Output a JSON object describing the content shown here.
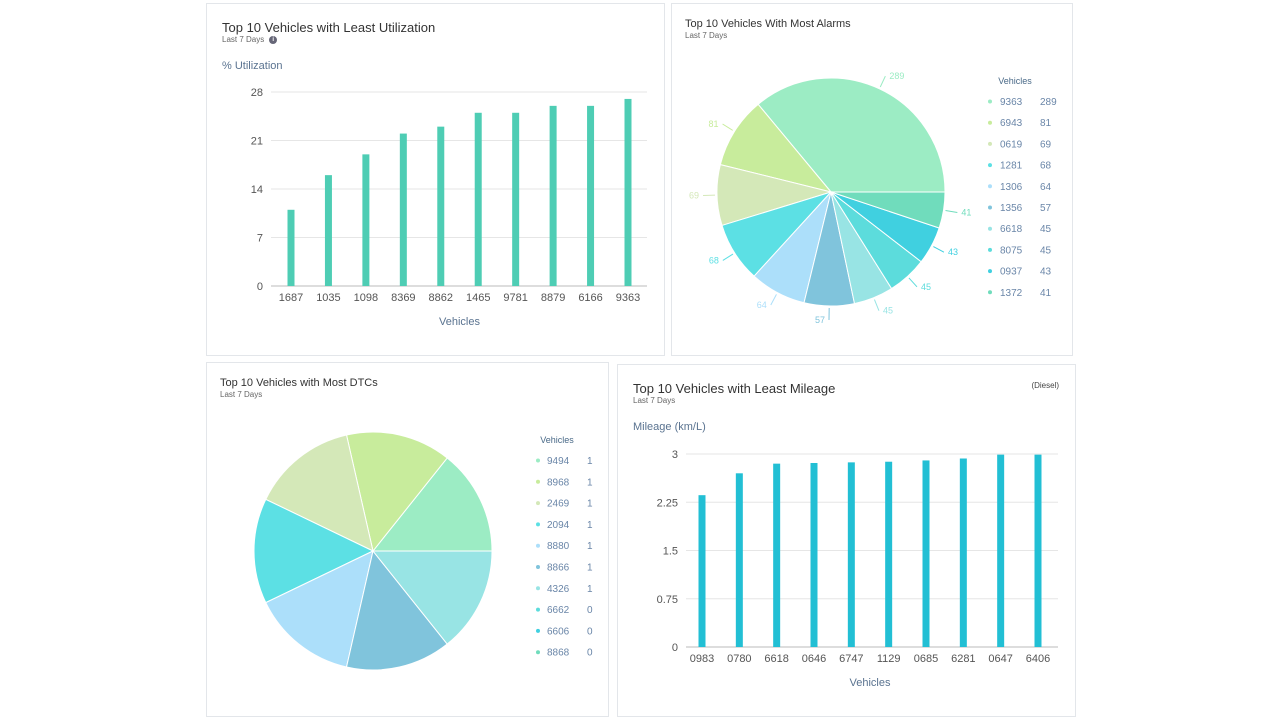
{
  "panels": {
    "utilization": {
      "title": "Top 10 Vehicles with Least Utilization",
      "subtitle": "Last 7 Days",
      "info_icon": "info-icon"
    },
    "alarms": {
      "title": "Top 10 Vehicles With Most Alarms",
      "subtitle": "Last 7 Days"
    },
    "dtcs": {
      "title": "Top 10 Vehicles with Most DTCs",
      "subtitle": "Last 7 Days"
    },
    "mileage": {
      "title": "Top 10 Vehicles with Least Mileage",
      "subtitle": "Last 7 Days",
      "note": "(Diesel)"
    }
  },
  "chart_data": [
    {
      "id": "utilization",
      "type": "bar",
      "title": "Top 10 Vehicles with Least Utilization",
      "ylabel": "% Utilization",
      "xlabel": "Vehicles",
      "categories": [
        "1687",
        "1035",
        "1098",
        "8369",
        "8862",
        "1465",
        "9781",
        "8879",
        "6166",
        "9363"
      ],
      "values": [
        11,
        16,
        19,
        22,
        23,
        25,
        25,
        26,
        26,
        27
      ],
      "ylim": [
        0,
        28
      ],
      "yticks": [
        "0",
        "7",
        "14",
        "21",
        "28"
      ],
      "color": "#4ecdb4",
      "grid": true
    },
    {
      "id": "alarms",
      "type": "pie",
      "title": "Top 10 Vehicles With Most Alarms",
      "legend_title": "Vehicles",
      "legend_position": "right",
      "labels": [
        "9363",
        "6943",
        "0619",
        "1281",
        "1306",
        "1356",
        "6618",
        "8075",
        "0937",
        "1372"
      ],
      "values": [
        289,
        81,
        69,
        68,
        64,
        57,
        45,
        45,
        43,
        41
      ],
      "value_labels": [
        "289",
        "81",
        "69",
        "68",
        "64",
        "57",
        "45",
        "45",
        "43",
        "41"
      ],
      "colors": [
        "#9cecc4",
        "#c8ec9c",
        "#d4e8b8",
        "#5ce0e4",
        "#acdffa",
        "#80c4dc",
        "#98e4e4",
        "#5cdcdc",
        "#40d0e0",
        "#70dcbc"
      ]
    },
    {
      "id": "dtcs",
      "type": "pie",
      "title": "Top 10 Vehicles with Most DTCs",
      "legend_title": "Vehicles",
      "legend_position": "right",
      "labels": [
        "9494",
        "8968",
        "2469",
        "2094",
        "8880",
        "8866",
        "4326",
        "6662",
        "6606",
        "8868"
      ],
      "values": [
        1,
        1,
        1,
        1,
        1,
        1,
        1,
        0,
        0,
        0
      ],
      "value_labels": [
        "1",
        "1",
        "1",
        "1",
        "1",
        "1",
        "1",
        "0",
        "0",
        "0"
      ],
      "colors": [
        "#9cecc4",
        "#c8ec9c",
        "#d4e8b8",
        "#5ce0e4",
        "#acdffa",
        "#80c4dc",
        "#98e4e4",
        "#5cdcdc",
        "#40d0e0",
        "#70dcbc"
      ]
    },
    {
      "id": "mileage",
      "type": "bar",
      "title": "Top 10 Vehicles with Least Mileage",
      "ylabel": "Mileage (km/L)",
      "xlabel": "Vehicles",
      "categories": [
        "0983",
        "0780",
        "6618",
        "0646",
        "6747",
        "1129",
        "0685",
        "6281",
        "0647",
        "6406"
      ],
      "values": [
        2.36,
        2.7,
        2.85,
        2.86,
        2.87,
        2.88,
        2.9,
        2.93,
        2.99,
        2.99
      ],
      "ylim": [
        0,
        3
      ],
      "yticks": [
        "0",
        "0.75",
        "1.5",
        "2.25",
        "3"
      ],
      "color": "#22bfd4",
      "grid": true
    }
  ]
}
